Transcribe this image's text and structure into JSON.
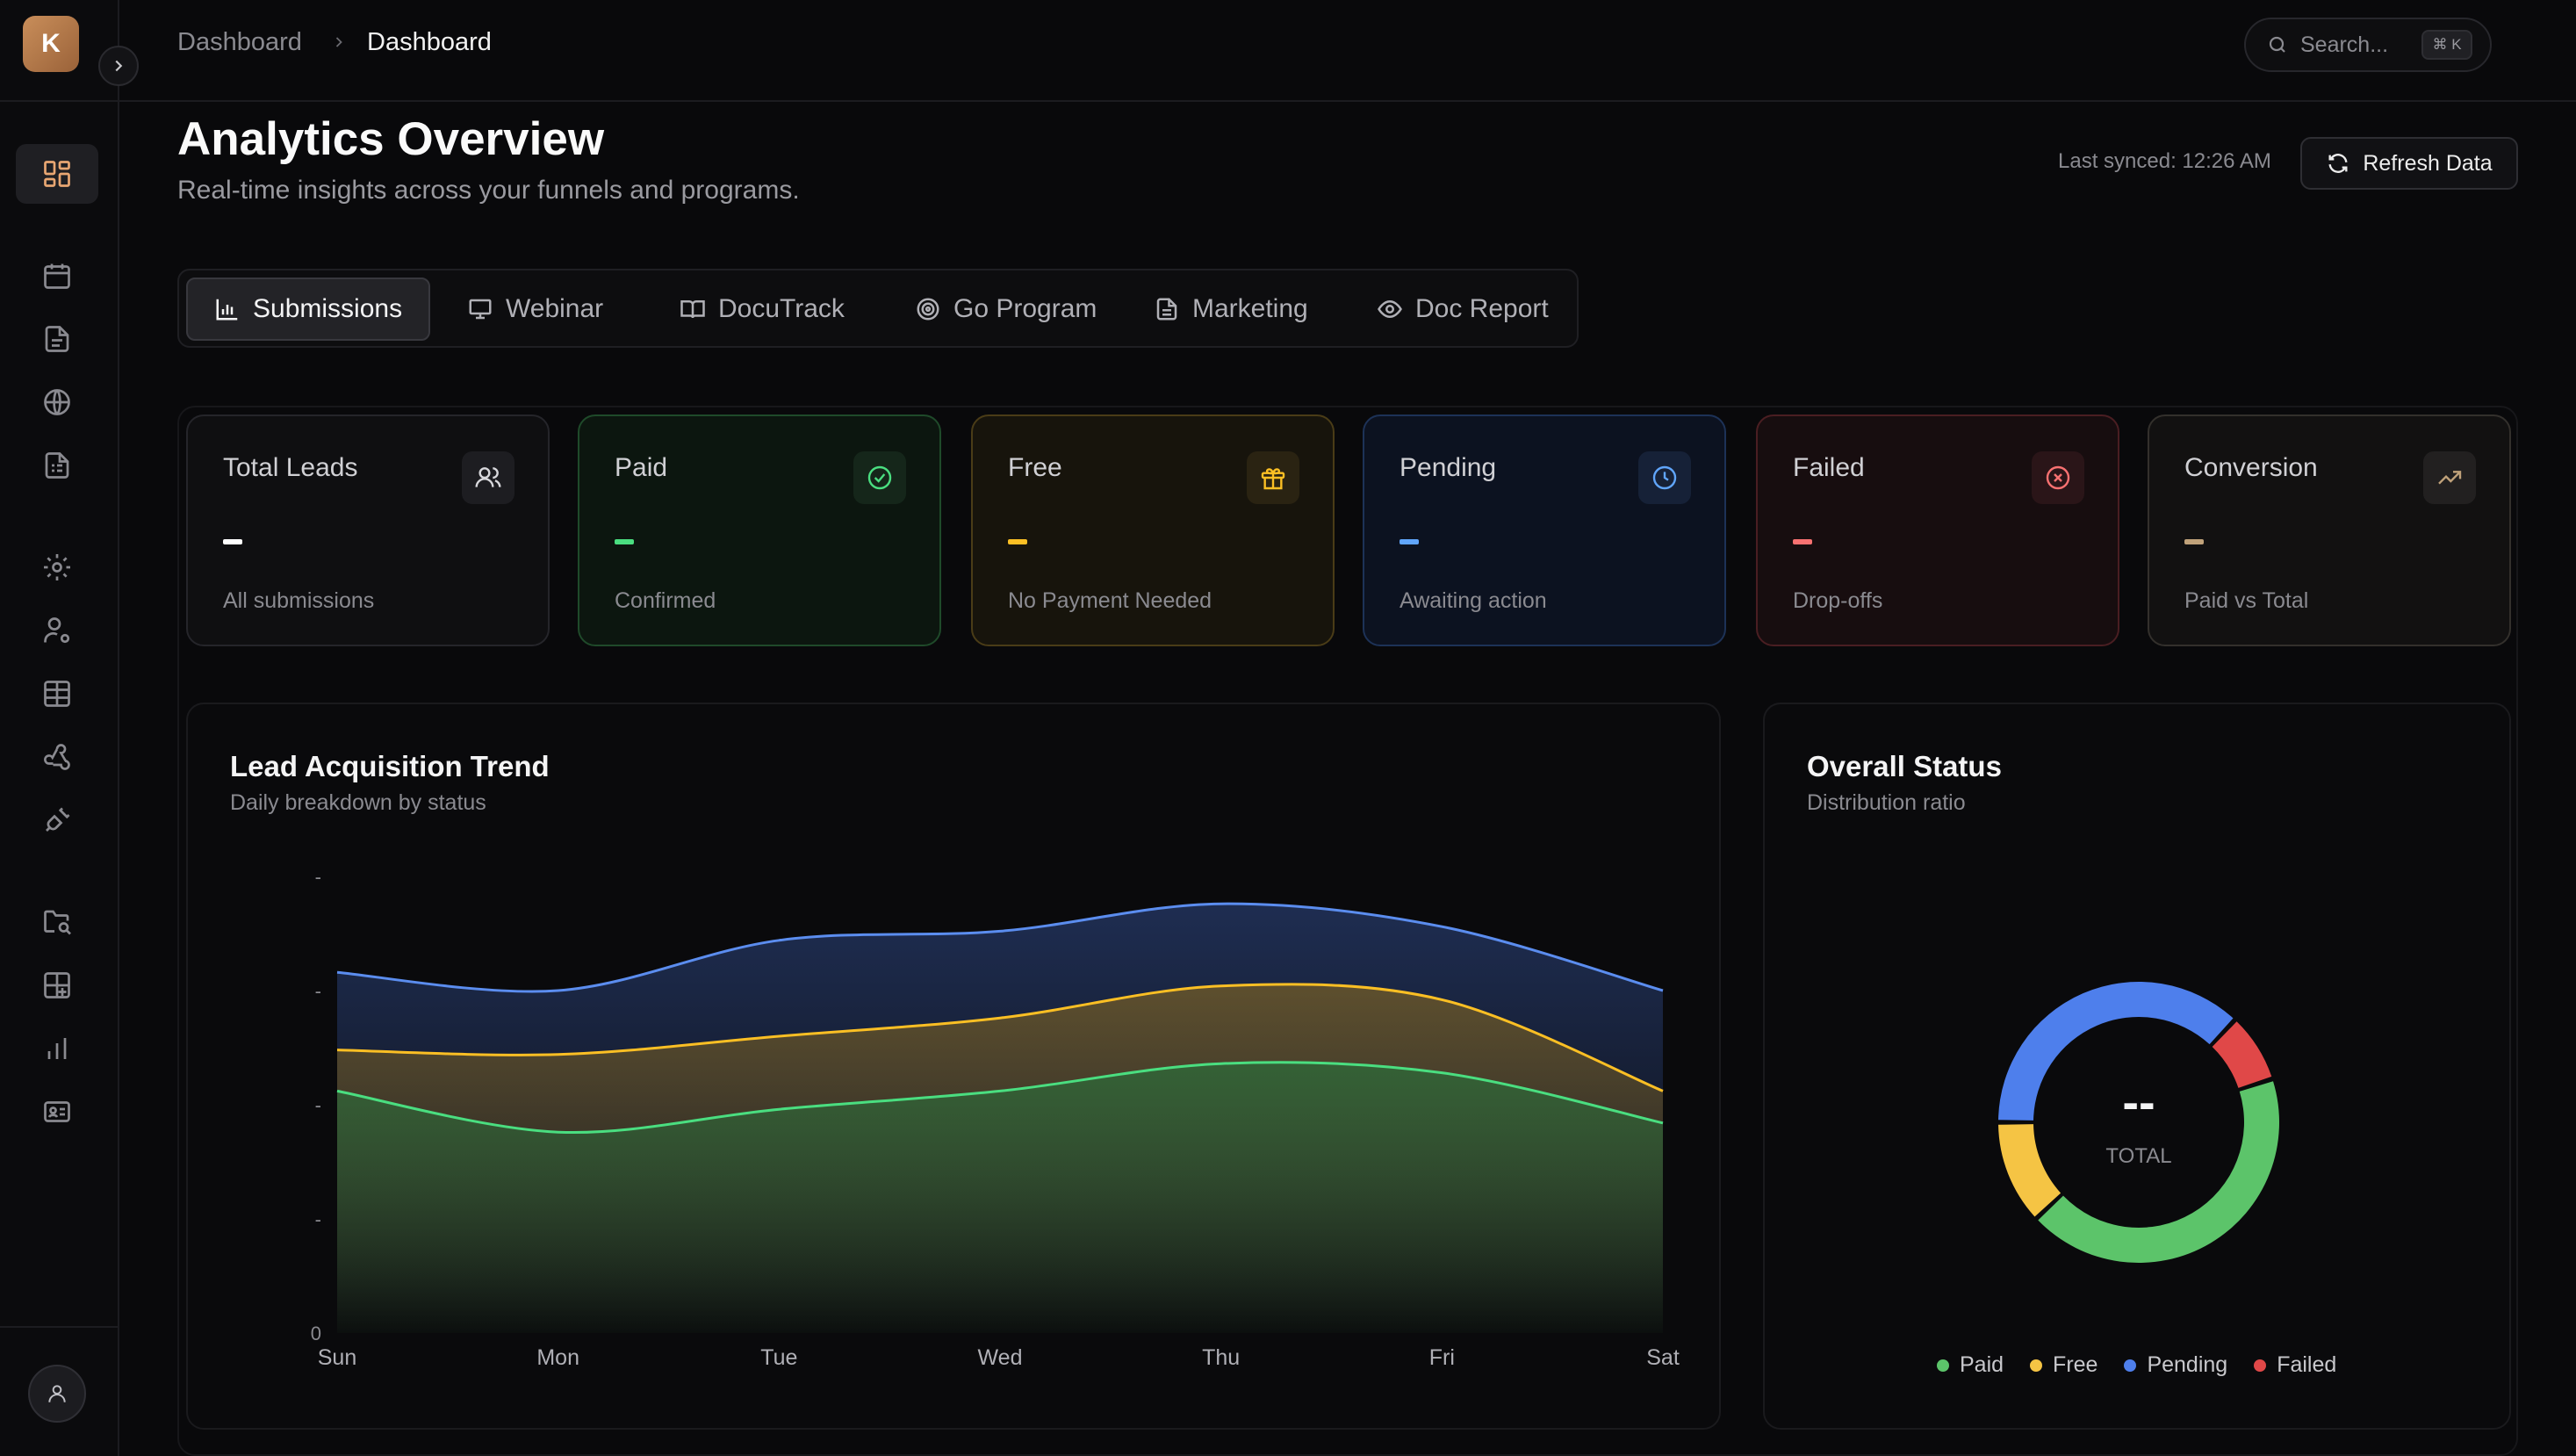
{
  "app": {
    "logo_letter": "K"
  },
  "breadcrumb": {
    "parent": "Dashboard",
    "current": "Dashboard"
  },
  "search": {
    "placeholder": "Search...",
    "shortcut": "⌘ K"
  },
  "header": {
    "title": "Analytics Overview",
    "subtitle": "Real-time insights across your funnels and programs.",
    "last_synced": "Last synced: 12:26 AM",
    "refresh_label": "Refresh Data"
  },
  "sidebar": {
    "icons": [
      "dashboard-icon",
      "calendar-icon",
      "document-icon",
      "globe-icon",
      "report-icon",
      "settings-icon",
      "user-cog-icon",
      "table-icon",
      "webhook-icon",
      "plug-icon",
      "folder-search-icon",
      "grid-plus-icon",
      "bar-chart-icon",
      "id-card-icon"
    ],
    "active_index": 0
  },
  "tabs": [
    {
      "label": "Submissions",
      "icon": "bar-chart-icon",
      "active": true
    },
    {
      "label": "Webinar",
      "icon": "presentation-icon",
      "active": false
    },
    {
      "label": "DocuTrack",
      "icon": "book-icon",
      "active": false
    },
    {
      "label": "Go Program",
      "icon": "target-icon",
      "active": false
    },
    {
      "label": "Marketing",
      "icon": "file-text-icon",
      "active": false
    },
    {
      "label": "Doc Report",
      "icon": "eye-icon",
      "active": false
    }
  ],
  "stats": [
    {
      "title": "Total Leads",
      "value": "-",
      "caption": "All submissions",
      "icon": "users-icon",
      "color": "#ffffff"
    },
    {
      "title": "Paid",
      "value": "-",
      "caption": "Confirmed",
      "icon": "check-circle-icon",
      "color": "#4ade80"
    },
    {
      "title": "Free",
      "value": "-",
      "caption": "No Payment Needed",
      "icon": "gift-icon",
      "color": "#fbbf24"
    },
    {
      "title": "Pending",
      "value": "-",
      "caption": "Awaiting action",
      "icon": "clock-icon",
      "color": "#60a5fa"
    },
    {
      "title": "Failed",
      "value": "-",
      "caption": "Drop-offs",
      "icon": "x-circle-icon",
      "color": "#f87171"
    },
    {
      "title": "Conversion",
      "value": "-",
      "caption": "Paid vs Total",
      "icon": "trending-up-icon",
      "color": "#c0a27a"
    }
  ],
  "trend_panel": {
    "title": "Lead Acquisition Trend",
    "subtitle": "Daily breakdown by status"
  },
  "status_panel": {
    "title": "Overall Status",
    "subtitle": "Distribution ratio",
    "total_value": "--",
    "total_label": "TOTAL"
  },
  "chart_data": [
    {
      "type": "area",
      "title": "Lead Acquisition Trend",
      "subtitle": "Daily breakdown by status",
      "categories": [
        "Sun",
        "Mon",
        "Tue",
        "Wed",
        "Thu",
        "Fri",
        "Sat"
      ],
      "y_tick_labels": [
        "-",
        "-",
        "-",
        "-",
        "0"
      ],
      "series": [
        {
          "values": [
            0.53,
            0.44,
            0.49,
            0.53,
            0.59,
            0.57,
            0.46
          ],
          "color": "#4ade80"
        },
        {
          "values": [
            0.62,
            0.61,
            0.65,
            0.69,
            0.76,
            0.73,
            0.53
          ],
          "color": "#fbbf24"
        },
        {
          "values": [
            0.79,
            0.75,
            0.86,
            0.88,
            0.94,
            0.89,
            0.75
          ],
          "color": "#5b8def"
        }
      ],
      "grid": false
    },
    {
      "type": "pie",
      "title": "Overall Status",
      "subtitle": "Distribution ratio",
      "labels": [
        "Paid",
        "Free",
        "Pending",
        "Failed"
      ],
      "values": [
        43,
        12,
        37,
        8
      ],
      "colors": [
        "#5cc46a",
        "#f5c444",
        "#4e7fec",
        "#e04848"
      ],
      "center_value": "--",
      "center_label": "TOTAL",
      "legend": "bottom"
    }
  ]
}
